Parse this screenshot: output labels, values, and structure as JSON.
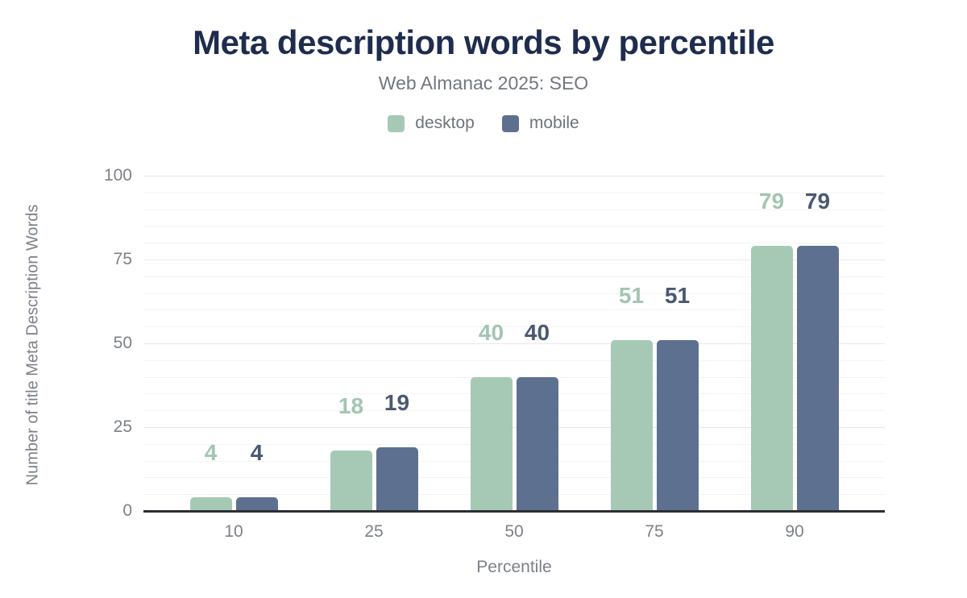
{
  "header": {
    "title": "Meta description words by percentile",
    "subtitle": "Web Almanac 2025: SEO"
  },
  "legend": [
    {
      "label": "desktop",
      "color": "#a6c9b5"
    },
    {
      "label": "mobile",
      "color": "#5d7090"
    }
  ],
  "chart_data": {
    "type": "bar",
    "title": "Meta description words by percentile",
    "subtitle": "Web Almanac 2025: SEO",
    "categories": [
      "10",
      "25",
      "50",
      "75",
      "90"
    ],
    "series": [
      {
        "name": "desktop",
        "color": "#a6c9b5",
        "label_color": "#a1c6b1",
        "values": [
          4,
          18,
          40,
          51,
          79
        ]
      },
      {
        "name": "mobile",
        "color": "#5d7090",
        "label_color": "#4b5872",
        "values": [
          4,
          19,
          40,
          51,
          79
        ]
      }
    ],
    "xlabel": "Percentile",
    "ylabel": "Number of title Meta Description Words",
    "ylim": [
      0,
      100
    ],
    "yticks": [
      0,
      25,
      50,
      75,
      100
    ],
    "minor_grid_step": 5,
    "grid": "horizontal-minor-and-major",
    "legend_position": "top",
    "value_labels": true,
    "colors": {
      "title": "#1e2c4e",
      "subtitle": "#72777f",
      "tick_text": "#7c8188",
      "gridline_major": "#e7e8ea",
      "gridline_minor": "#f3f4f5",
      "baseline": "#2b2e33",
      "background": "#ffffff"
    }
  }
}
